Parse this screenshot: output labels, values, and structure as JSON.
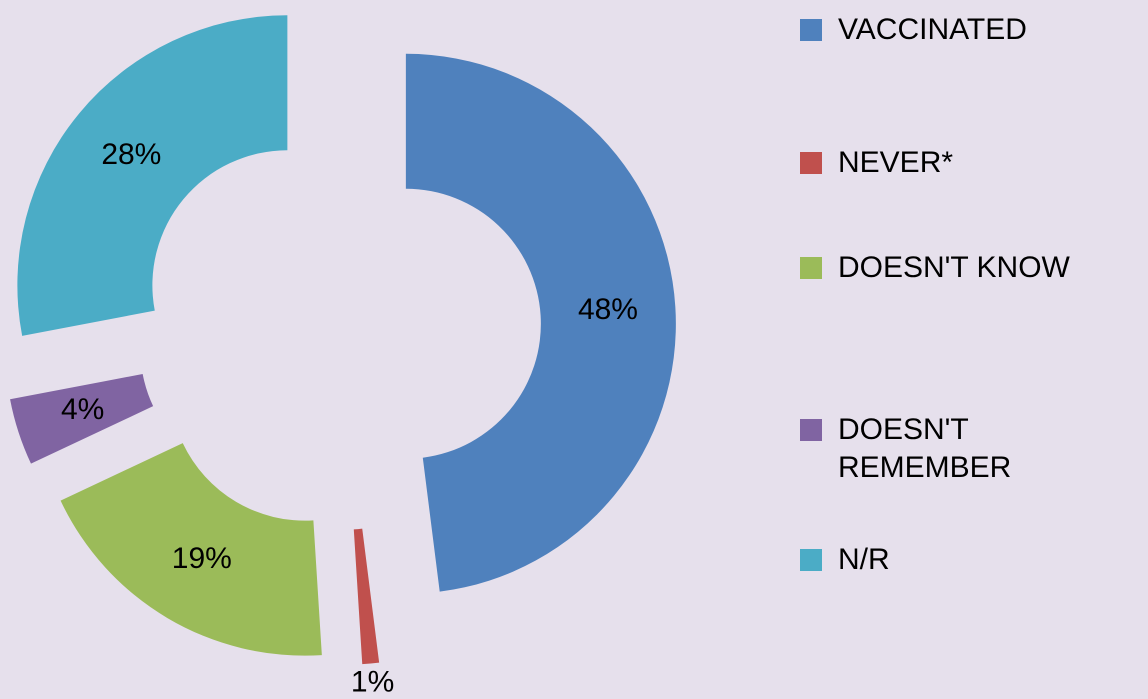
{
  "chart_data": {
    "type": "donut",
    "categories": [
      "VACCINATED",
      "NEVER*",
      "DOESN'T KNOW",
      "DOESN'T REMEMBER",
      "N/R"
    ],
    "values": [
      48,
      1,
      19,
      4,
      28
    ],
    "value_labels": [
      "48%",
      "1%",
      "19%",
      "4%",
      "28%"
    ],
    "colors": [
      "#4f81bd",
      "#c0504d",
      "#9bbb59",
      "#8064a2",
      "#4bacc6"
    ],
    "legend": "right"
  }
}
